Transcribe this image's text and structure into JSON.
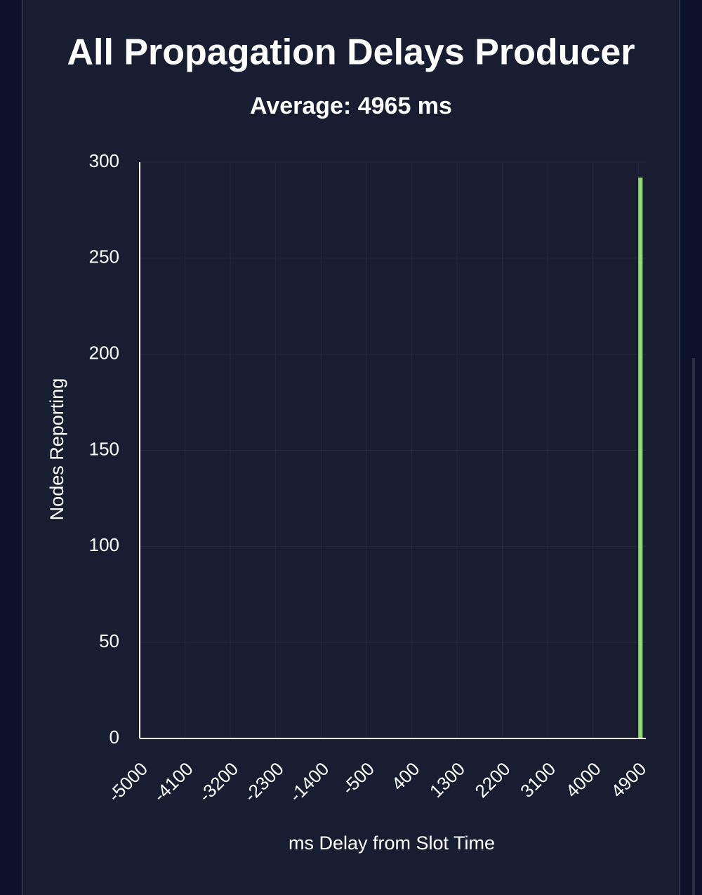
{
  "chart_data": {
    "type": "histogram",
    "title": "All Propagation Delays Producer",
    "subtitle": "Average: 4965 ms",
    "x_label": "ms Delay from Slot Time",
    "y_label": "Nodes Reporting",
    "bins": [
      4900,
      5000
    ],
    "values": [
      292
    ],
    "color": "#8fd96f",
    "xlim": [
      -5000,
      5050
    ],
    "xticks": [
      -5000,
      -4100,
      -3200,
      -2300,
      -1400,
      -500,
      400,
      1300,
      2200,
      3100,
      4000,
      4900
    ],
    "ylim": [
      0,
      300
    ],
    "yticks": [
      0,
      50,
      100,
      150,
      200,
      250,
      300
    ],
    "grid": true
  }
}
